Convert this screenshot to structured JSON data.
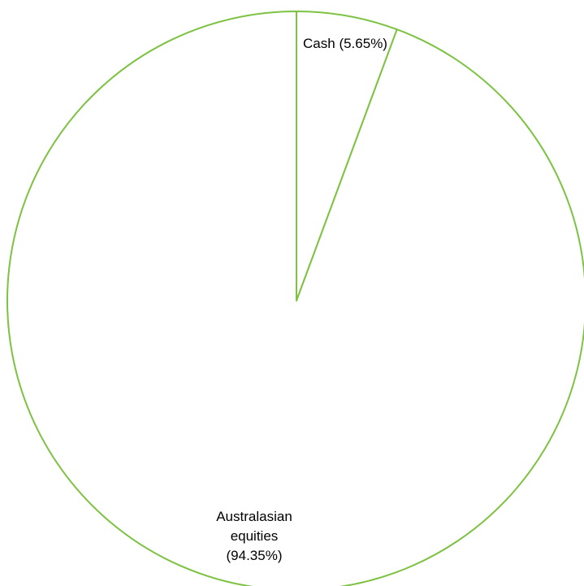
{
  "chart_data": {
    "type": "pie",
    "title": "",
    "slices": [
      {
        "label": "Cash",
        "value": 5.65,
        "label_lines": [
          "Cash (5.65%)"
        ]
      },
      {
        "label": "Australasian equities",
        "value": 94.35,
        "label_lines": [
          "Australasian",
          "equities",
          "(94.35%)"
        ]
      }
    ],
    "stroke_color": "#7DC242",
    "fill_color": "#FFFFFF",
    "start_angle": "12 o'clock, clockwise",
    "legend": "none"
  }
}
